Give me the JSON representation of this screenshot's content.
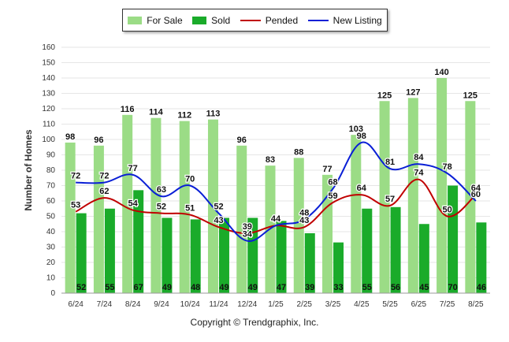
{
  "chart_data": {
    "type": "bar",
    "categories": [
      "6/24",
      "7/24",
      "8/24",
      "9/24",
      "10/24",
      "11/24",
      "12/24",
      "1/25",
      "2/25",
      "3/25",
      "4/25",
      "5/25",
      "6/25",
      "7/25",
      "8/25"
    ],
    "series": [
      {
        "name": "For Sale",
        "type": "bar",
        "color": "#9bdc86",
        "values": [
          98,
          96,
          116,
          114,
          112,
          113,
          96,
          83,
          88,
          77,
          103,
          125,
          127,
          140,
          125
        ]
      },
      {
        "name": "Sold",
        "type": "bar",
        "color": "#1aab2a",
        "values": [
          52,
          55,
          67,
          49,
          48,
          49,
          49,
          47,
          39,
          33,
          55,
          56,
          45,
          70,
          46
        ]
      },
      {
        "name": "Pended",
        "type": "line",
        "color": "#c00000",
        "values": [
          53,
          62,
          54,
          52,
          51,
          43,
          39,
          44,
          43,
          59,
          64,
          57,
          74,
          50,
          64
        ]
      },
      {
        "name": "New Listing",
        "type": "line",
        "color": "#0a1fd6",
        "values": [
          72,
          72,
          77,
          63,
          70,
          52,
          34,
          44,
          48,
          68,
          98,
          81,
          84,
          78,
          60
        ]
      }
    ],
    "ylabel": "Number of Homes",
    "xlabel": "",
    "ylim": [
      0,
      160
    ],
    "yticks": [
      0,
      10,
      20,
      30,
      40,
      50,
      60,
      70,
      80,
      90,
      100,
      110,
      120,
      130,
      140,
      150,
      160
    ],
    "grid": true,
    "legend_position": "top-center"
  },
  "legend": {
    "items": [
      {
        "label": "For Sale",
        "color": "#9bdc86",
        "kind": "bar"
      },
      {
        "label": "Sold",
        "color": "#1aab2a",
        "kind": "bar"
      },
      {
        "label": "Pended",
        "color": "#c00000",
        "kind": "line"
      },
      {
        "label": "New Listing",
        "color": "#0a1fd6",
        "kind": "line"
      }
    ]
  },
  "footer": {
    "copyright": "Copyright © Trendgraphix, Inc."
  }
}
